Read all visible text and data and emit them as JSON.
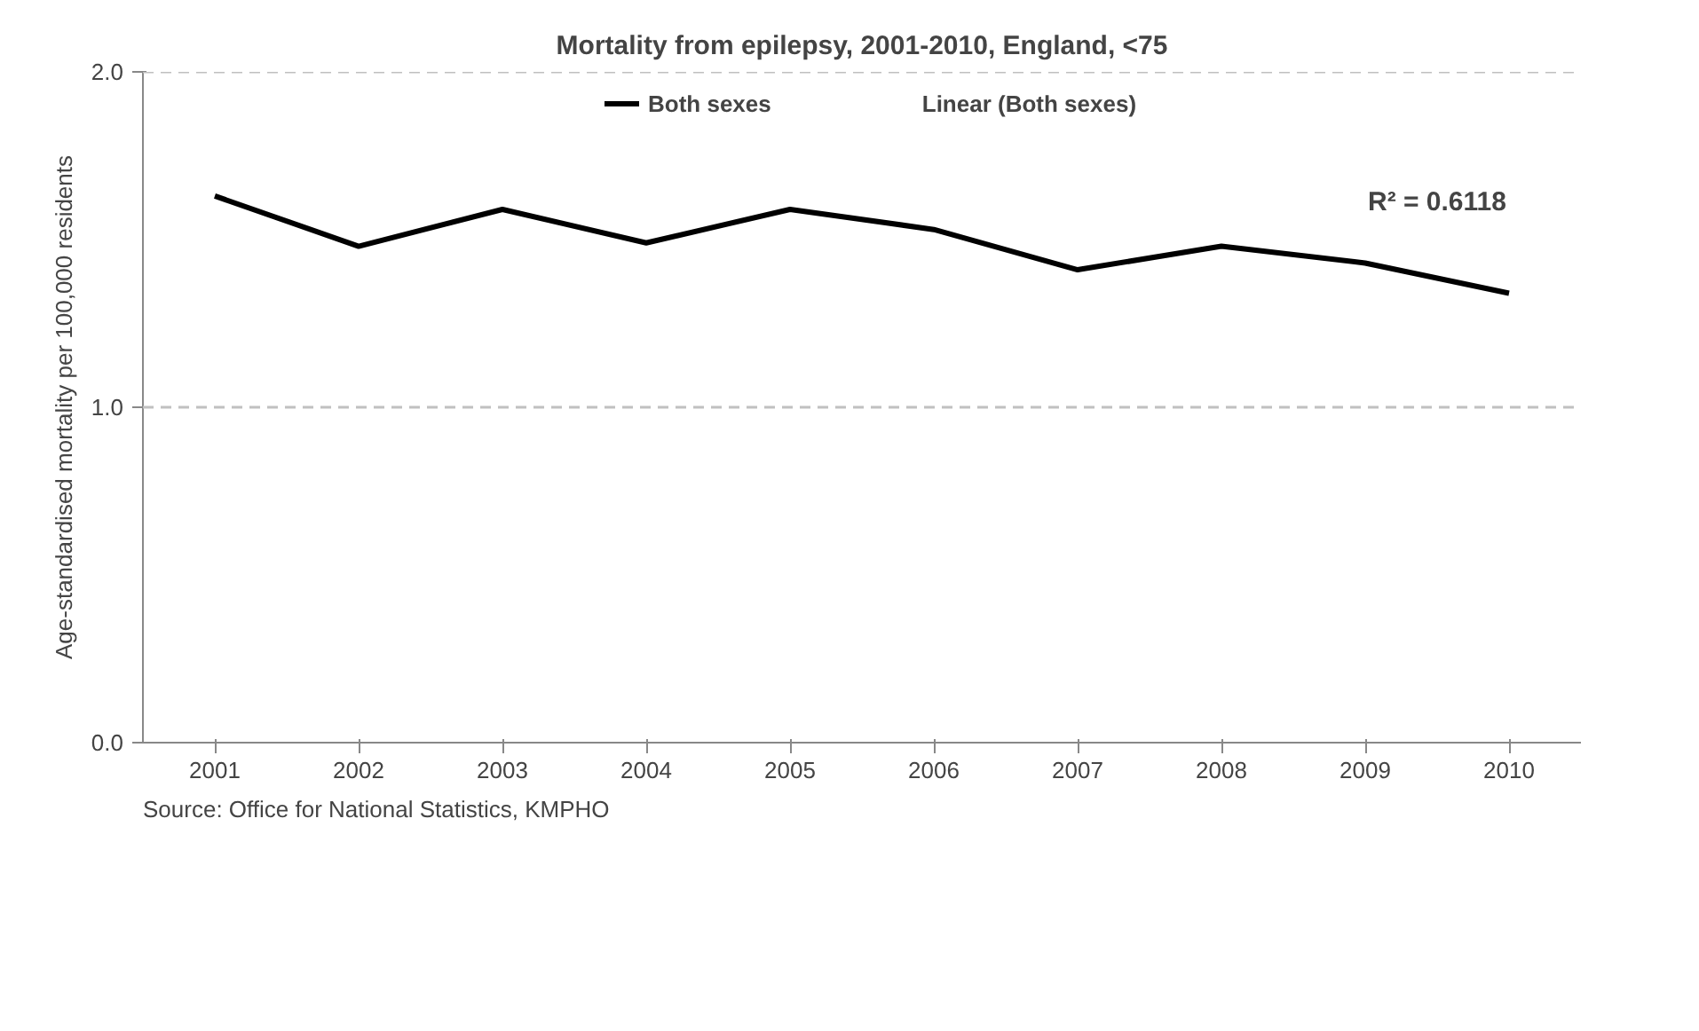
{
  "chart_data": {
    "type": "line",
    "title": "Mortality from epilepsy, 2001-2010, England, <75",
    "ylabel": "Age-standardised mortality per 100,000 residents",
    "categories": [
      "2001",
      "2002",
      "2003",
      "2004",
      "2005",
      "2006",
      "2007",
      "2008",
      "2009",
      "2010"
    ],
    "series": [
      {
        "name": "Both sexes",
        "color": "#000000",
        "values": [
          1.63,
          1.48,
          1.59,
          1.49,
          1.59,
          1.53,
          1.41,
          1.48,
          1.43,
          1.34
        ]
      }
    ],
    "ylim": [
      0,
      2.0
    ],
    "yticks": [
      {
        "value": 0,
        "label": "0.0"
      },
      {
        "value": 1,
        "label": "1.0"
      },
      {
        "value": 2,
        "label": "2.0"
      }
    ],
    "grid": "y",
    "legend": "top",
    "marker": "none",
    "line_style": "solid",
    "annotations": [
      "Linear (Both sexes)",
      "R² = 0.6118",
      "Source: Office for National Statistics, KMPHO"
    ]
  }
}
